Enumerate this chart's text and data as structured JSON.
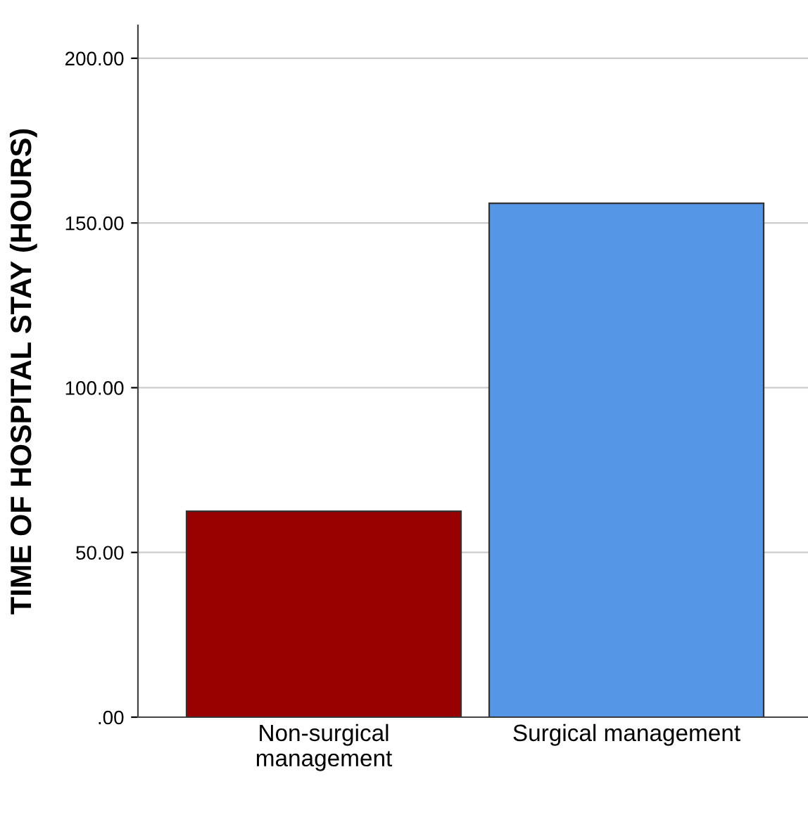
{
  "chart_data": {
    "type": "bar",
    "ylabel": "TIME OF HOSPITAL STAY (HOURS)",
    "categories": [
      "Non-surgical\nmanagement",
      "Surgical management"
    ],
    "values": [
      62.5,
      156
    ],
    "colors": [
      "#990000",
      "#5596e6"
    ],
    "ylim": [
      0,
      210
    ],
    "yticks": [
      {
        "value": 0,
        "label": ".00"
      },
      {
        "value": 50,
        "label": "50.00"
      },
      {
        "value": 100,
        "label": "100.00"
      },
      {
        "value": 150,
        "label": "150.00"
      },
      {
        "value": 200,
        "label": "200.00"
      }
    ],
    "grid": "y",
    "legend": false
  }
}
